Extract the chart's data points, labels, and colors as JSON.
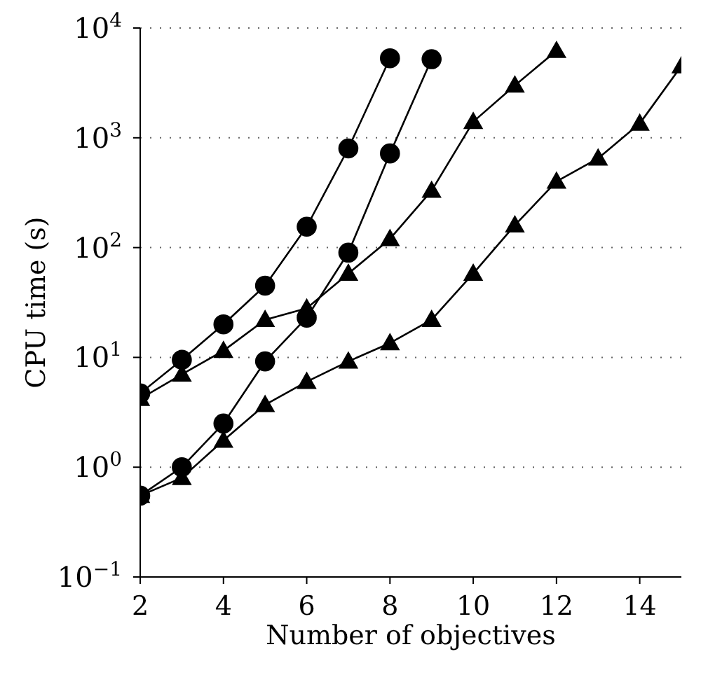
{
  "chart_data": {
    "type": "line",
    "xlabel": "Number of objectives",
    "ylabel": "CPU time (s)",
    "log": "y",
    "grid": "y",
    "legend": false,
    "line_style": "solid",
    "xlim": [
      2,
      15
    ],
    "xticks": [
      2,
      4,
      6,
      8,
      10,
      12,
      14
    ],
    "ylim": [
      0.1,
      10000
    ],
    "yticks": [
      {
        "value": 0.1,
        "label": "10$^{−1}$"
      },
      {
        "value": 1,
        "label": "10$^{0}$"
      },
      {
        "value": 10,
        "label": "10$^{1}$"
      },
      {
        "value": 100,
        "label": "10$^{2}$"
      },
      {
        "value": 1000,
        "label": "10$^{3}$"
      },
      {
        "value": 10000,
        "label": "10$^{4}$"
      }
    ],
    "series": [
      {
        "color": "#000000",
        "marker": "circle",
        "x": [
          2,
          3,
          4,
          5,
          6,
          7,
          8
        ],
        "values": [
          4.7,
          9.5,
          20,
          45,
          155,
          800,
          5300
        ]
      },
      {
        "color": "#000000",
        "marker": "circle",
        "x": [
          2,
          3,
          4,
          5,
          6,
          7,
          8,
          9
        ],
        "values": [
          0.55,
          1.0,
          2.5,
          9.2,
          23,
          90,
          720,
          5200
        ]
      },
      {
        "color": "#000000",
        "marker": "triangle",
        "x": [
          2,
          3,
          4,
          5,
          6,
          7,
          8,
          9,
          10,
          11,
          12
        ],
        "values": [
          4.2,
          7,
          11.5,
          22,
          28,
          58,
          120,
          330,
          1400,
          3000,
          6200
        ]
      },
      {
        "color": "#000000",
        "marker": "triangle",
        "x": [
          2,
          3,
          4,
          5,
          6,
          7,
          8,
          9,
          10,
          11,
          12,
          13,
          14,
          15
        ],
        "values": [
          0.55,
          0.8,
          1.75,
          3.7,
          6,
          9.2,
          13.5,
          22,
          58,
          160,
          400,
          650,
          1350,
          4500
        ]
      }
    ]
  }
}
